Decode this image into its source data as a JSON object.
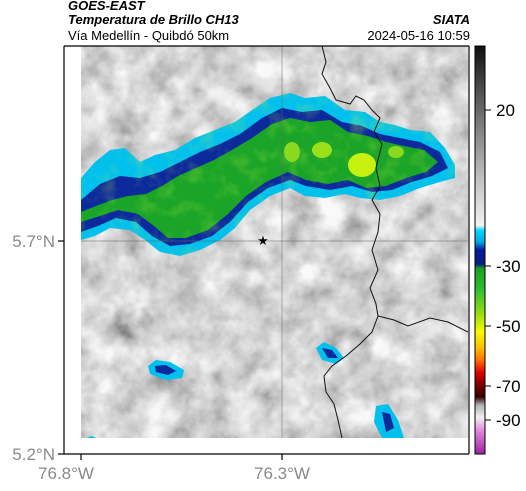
{
  "header": {
    "satellite": "GOES-EAST",
    "product": "Temperatura de Brillo CH13",
    "route": "Vía Medellín - Quibdó 50km",
    "agency": "SIATA",
    "timestamp": "2024-05-16 10:59"
  },
  "map": {
    "lat_ticks": [
      "5.7°N",
      "5.2°N"
    ],
    "lon_ticks": [
      "76.8°W",
      "76.3°W"
    ],
    "marker": "★"
  },
  "colorbar": {
    "ticks": [
      "20",
      "-30",
      "-50",
      "-70",
      "-90"
    ],
    "colors": {
      "gray_warm": "#2a2a2a",
      "cyan": "#00c8f0",
      "blue": "#1030b0",
      "green": "#18a020",
      "yellow": "#f0f000",
      "orange": "#ff8000",
      "red": "#c00000",
      "magenta": "#c040c0"
    }
  }
}
